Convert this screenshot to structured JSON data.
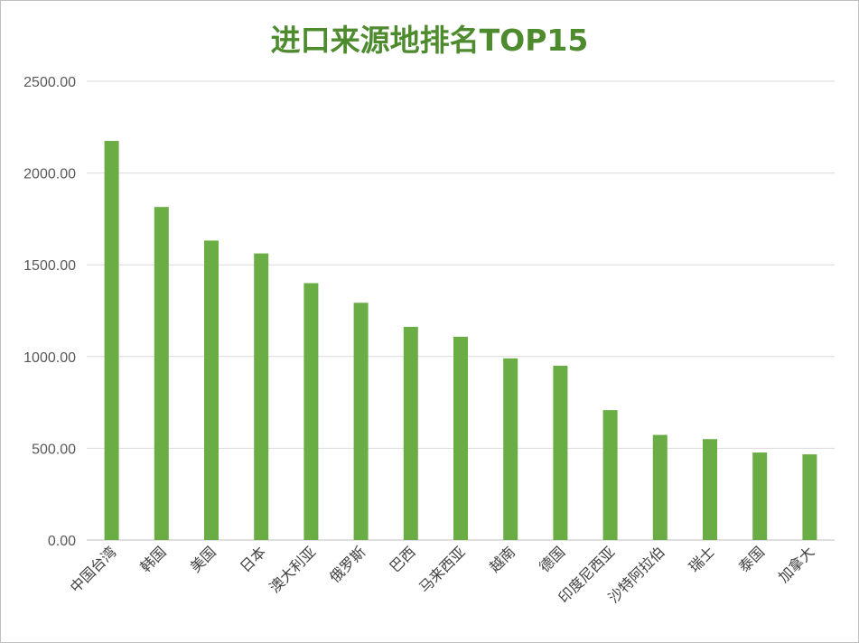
{
  "chart_data": {
    "type": "bar",
    "title": "进口来源地排名TOP15",
    "xlabel": "",
    "ylabel": "",
    "ylim": [
      0,
      2500
    ],
    "yticks": [
      "0.00",
      "500.00",
      "1000.00",
      "1500.00",
      "2000.00",
      "2500.00"
    ],
    "grid": true,
    "legend": "none",
    "bar_color": "#6aad45",
    "title_color": "#4e8a2e",
    "categories": [
      "中国台湾",
      "韩国",
      "美国",
      "日本",
      "澳大利亚",
      "俄罗斯",
      "巴西",
      "马来西亚",
      "越南",
      "德国",
      "印度尼西亚",
      "沙特阿拉伯",
      "瑞士",
      "泰国",
      "加拿大"
    ],
    "values": [
      2175,
      1815,
      1632,
      1562,
      1400,
      1293,
      1162,
      1108,
      990,
      950,
      708,
      573,
      550,
      477,
      467
    ]
  }
}
